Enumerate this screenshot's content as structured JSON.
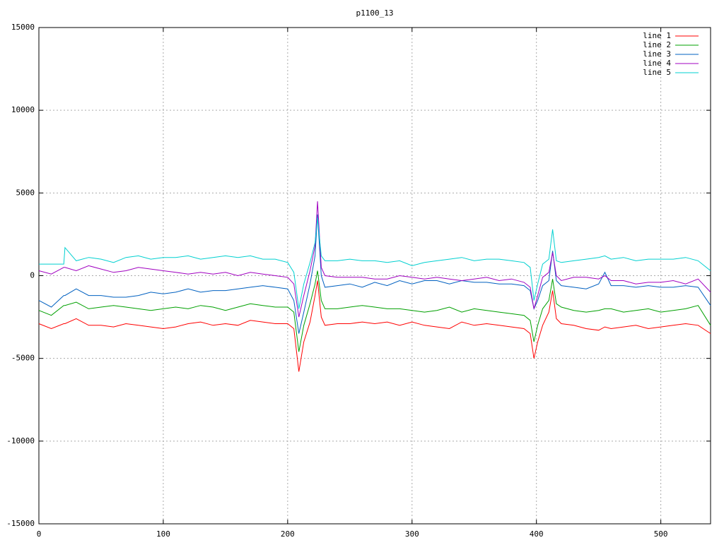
{
  "chart_data": {
    "type": "line",
    "title": "p1100_13",
    "x": [
      0,
      10,
      20,
      21,
      30,
      40,
      50,
      60,
      70,
      80,
      90,
      100,
      110,
      120,
      130,
      140,
      150,
      160,
      170,
      180,
      190,
      200,
      205,
      209,
      213,
      218,
      222,
      224,
      227,
      230,
      240,
      250,
      260,
      270,
      280,
      290,
      300,
      310,
      320,
      330,
      340,
      350,
      360,
      370,
      380,
      390,
      395,
      398,
      401,
      405,
      410,
      413,
      416,
      420,
      430,
      440,
      450,
      455,
      460,
      470,
      480,
      490,
      500,
      510,
      520,
      530,
      540
    ],
    "series": [
      {
        "name": "line 1",
        "color": "#ff0000",
        "values": [
          -2900,
          -3200,
          -2900,
          -2900,
          -2600,
          -3000,
          -3000,
          -3100,
          -2900,
          -3000,
          -3100,
          -3200,
          -3100,
          -2900,
          -2800,
          -3000,
          -2900,
          -3000,
          -2700,
          -2800,
          -2900,
          -2900,
          -3200,
          -5800,
          -4000,
          -2800,
          -1200,
          -300,
          -2500,
          -3000,
          -2900,
          -2900,
          -2800,
          -2900,
          -2800,
          -3000,
          -2800,
          -3000,
          -3100,
          -3200,
          -2800,
          -3000,
          -2900,
          -3000,
          -3100,
          -3200,
          -3500,
          -5000,
          -4000,
          -3000,
          -2200,
          -900,
          -2600,
          -2900,
          -3000,
          -3200,
          -3300,
          -3100,
          -3200,
          -3100,
          -3000,
          -3200,
          -3100,
          -3000,
          -2900,
          -3000,
          -3500
        ]
      },
      {
        "name": "line 2",
        "color": "#00a000",
        "values": [
          -2100,
          -2400,
          -1800,
          -1800,
          -1600,
          -2000,
          -1900,
          -1800,
          -1900,
          -2000,
          -2100,
          -2000,
          -1900,
          -2000,
          -1800,
          -1900,
          -2100,
          -1900,
          -1700,
          -1800,
          -1900,
          -1900,
          -2200,
          -4600,
          -3000,
          -1700,
          -500,
          300,
          -1500,
          -2000,
          -2000,
          -1900,
          -1800,
          -1900,
          -2000,
          -2000,
          -2100,
          -2200,
          -2100,
          -1900,
          -2200,
          -2000,
          -2100,
          -2200,
          -2300,
          -2400,
          -2700,
          -4000,
          -3000,
          -2000,
          -1500,
          -200,
          -1700,
          -1900,
          -2100,
          -2200,
          -2100,
          -2000,
          -2000,
          -2200,
          -2100,
          -2000,
          -2200,
          -2100,
          -2000,
          -1800,
          -3000
        ]
      },
      {
        "name": "line 3",
        "color": "#0060c0",
        "values": [
          -1500,
          -1900,
          -1200,
          -1200,
          -800,
          -1200,
          -1200,
          -1300,
          -1300,
          -1200,
          -1000,
          -1100,
          -1000,
          -800,
          -1000,
          -900,
          -900,
          -800,
          -700,
          -600,
          -700,
          -800,
          -1500,
          -3500,
          -2200,
          -500,
          1200,
          3700,
          0,
          -700,
          -600,
          -500,
          -700,
          -400,
          -600,
          -300,
          -500,
          -300,
          -300,
          -500,
          -300,
          -400,
          -400,
          -500,
          -500,
          -600,
          -900,
          -2000,
          -1500,
          -600,
          -300,
          1500,
          -300,
          -600,
          -700,
          -800,
          -500,
          200,
          -600,
          -600,
          -700,
          -600,
          -700,
          -700,
          -600,
          -700,
          -1800
        ]
      },
      {
        "name": "line 4",
        "color": "#a000c0",
        "values": [
          300,
          100,
          500,
          500,
          300,
          600,
          400,
          200,
          300,
          500,
          400,
          300,
          200,
          100,
          200,
          100,
          200,
          0,
          200,
          100,
          0,
          -100,
          -500,
          -2500,
          -1200,
          300,
          1800,
          4500,
          500,
          0,
          -100,
          -100,
          -100,
          -200,
          -200,
          0,
          -100,
          -200,
          -100,
          -200,
          -300,
          -200,
          -100,
          -300,
          -200,
          -400,
          -700,
          -2000,
          -1200,
          -100,
          200,
          1400,
          0,
          -300,
          -100,
          -100,
          -200,
          0,
          -300,
          -300,
          -500,
          -400,
          -400,
          -300,
          -500,
          -200,
          -1000
        ]
      },
      {
        "name": "line 5",
        "color": "#00d0d0",
        "values": [
          700,
          700,
          700,
          1700,
          900,
          1100,
          1000,
          800,
          1100,
          1200,
          1000,
          1100,
          1100,
          1200,
          1000,
          1100,
          1200,
          1100,
          1200,
          1000,
          1000,
          800,
          200,
          -2000,
          -500,
          800,
          2000,
          3500,
          1200,
          900,
          900,
          1000,
          900,
          900,
          800,
          900,
          600,
          800,
          900,
          1000,
          1100,
          900,
          1000,
          1000,
          900,
          800,
          500,
          -1500,
          -500,
          700,
          1000,
          2800,
          900,
          800,
          900,
          1000,
          1100,
          1200,
          1000,
          1100,
          900,
          1000,
          1000,
          1000,
          1100,
          900,
          300
        ]
      }
    ],
    "xlim": [
      0,
      540
    ],
    "xticks": [
      0,
      100,
      200,
      300,
      400,
      500
    ],
    "ylim": [
      -15000,
      15000
    ],
    "yticks": [
      -15000,
      -10000,
      -5000,
      0,
      5000,
      10000,
      15000
    ],
    "grid": true,
    "legend": "top-right"
  }
}
